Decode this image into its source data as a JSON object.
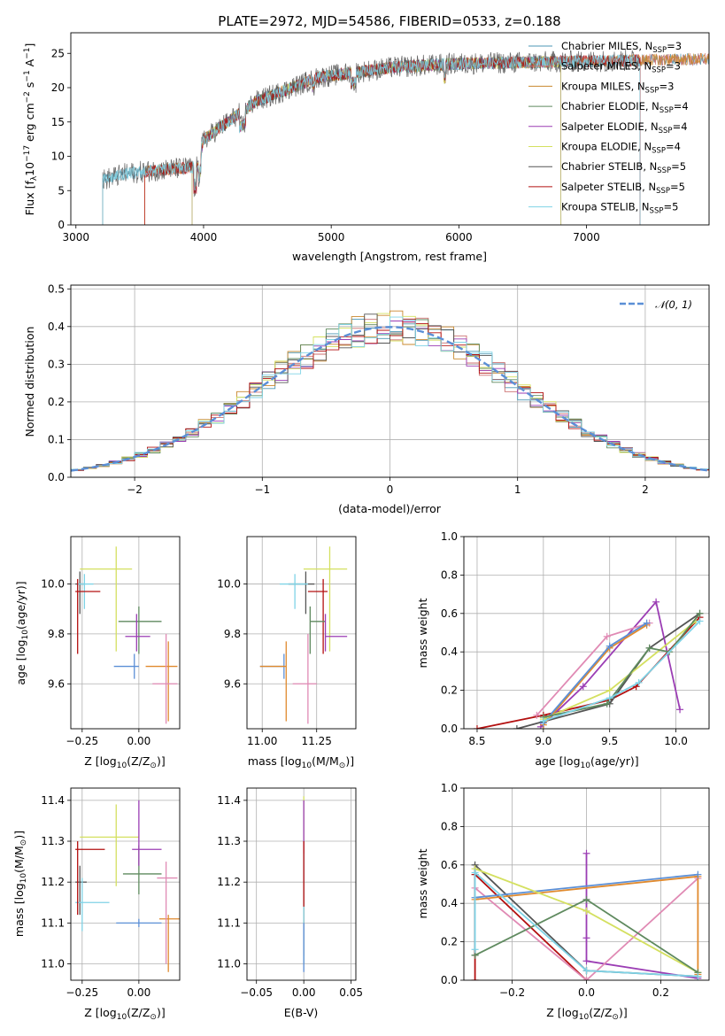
{
  "colors": [
    "#4d97b4",
    "#cc6f6f",
    "#c9882e",
    "#5f8a5f",
    "#9b3db4",
    "#d4e060",
    "#555555",
    "#b31010",
    "#7fd3e6"
  ],
  "chart_data": [
    {
      "type": "line",
      "id": "spectrum",
      "title": "PLATE=2972, MJD=54586, FIBERID=0533, z=0.188",
      "xlabel": "wavelength [Angstrom, rest frame]",
      "ylabel": "Flux [f",
      "ylabel_sub": "λ",
      "ylabel_rest": "10",
      "ylabel_sup1": "−17",
      "ylabel_rest2": " erg cm",
      "ylabel_sup2": "−2",
      "ylabel_rest3": " s",
      "ylabel_sup3": "−1",
      "ylabel_rest4": " A",
      "ylabel_sup4": "−1",
      "ylabel_end": "]",
      "xlim": [
        2960,
        7960
      ],
      "ylim": [
        0,
        28
      ],
      "xticks": [
        3000,
        4000,
        5000,
        6000,
        7000
      ],
      "yticks": [
        0,
        5,
        10,
        15,
        20,
        25
      ],
      "legend_loc": "top-right",
      "series": [
        {
          "name": "Chabrier MILES, N",
          "sub": "SSP",
          "suffix": "=3",
          "x_start": 3210,
          "x_end": 7960
        },
        {
          "name": "Salpeter MILES, N",
          "sub": "SSP",
          "suffix": "=3",
          "x_start": 3540,
          "x_end": 7960
        },
        {
          "name": "Kroupa MILES, N",
          "sub": "SSP",
          "suffix": "=3",
          "x_start": 3540,
          "x_end": 7960
        },
        {
          "name": "Chabrier ELODIE, N",
          "sub": "SSP",
          "suffix": "=4",
          "x_start": 3910,
          "x_end": 6800
        },
        {
          "name": "Salpeter ELODIE, N",
          "sub": "SSP",
          "suffix": "=4",
          "x_start": 3910,
          "x_end": 6800
        },
        {
          "name": "Kroupa ELODIE, N",
          "sub": "SSP",
          "suffix": "=4",
          "x_start": 3910,
          "x_end": 6800
        },
        {
          "name": "Chabrier STELIB, N",
          "sub": "SSP",
          "suffix": "=5",
          "x_start": 3210,
          "x_end": 7420
        },
        {
          "name": "Salpeter STELIB, N",
          "sub": "SSP",
          "suffix": "=5",
          "x_start": 3540,
          "x_end": 7420
        },
        {
          "name": "Kroupa STELIB, N",
          "sub": "SSP",
          "suffix": "=5",
          "x_start": 3210,
          "x_end": 7420
        }
      ]
    },
    {
      "type": "line",
      "id": "residuals",
      "xlabel": "(data-model)/error",
      "ylabel": "Normed distribution",
      "xlim": [
        -2.5,
        2.5
      ],
      "ylim": [
        0,
        0.51
      ],
      "xticks": [
        -2,
        -1,
        0,
        1,
        2
      ],
      "yticks": [
        0.0,
        0.1,
        0.2,
        0.3,
        0.4,
        0.5
      ],
      "grid": true,
      "legend_loc": "top-right",
      "legend": {
        "name": "𝒩(0, 1)",
        "color": "#5b8fd6"
      }
    },
    {
      "type": "scatter",
      "id": "age-vs-Z",
      "xlabel": "Z [log",
      "xlabel_sub": "10",
      "xlabel_rest": "(Z/Z",
      "xlabel_sub2": "⊙",
      "xlabel_end": ")]",
      "ylabel": "age  [log",
      "ylabel_sub": "10",
      "ylabel_rest": "(age/yr)]",
      "xlim": [
        -0.3,
        0.18
      ],
      "ylim": [
        9.42,
        10.19
      ],
      "xticks": [
        -0.25,
        0.0
      ],
      "yticks": [
        9.6,
        9.8,
        10.0
      ],
      "grid": true,
      "points": [
        {
          "x": -0.26,
          "xerr": [
            0.02,
            0.02
          ],
          "y": 10.0,
          "yerr": [
            0.12,
            0.05
          ],
          "c": "#555555"
        },
        {
          "x": -0.24,
          "xerr": [
            0.03,
            0.04
          ],
          "y": 10.0,
          "yerr": [
            0.1,
            0.04
          ],
          "c": "#7fd3e6"
        },
        {
          "x": -0.27,
          "xerr": [
            0.01,
            0.1
          ],
          "y": 9.97,
          "yerr": [
            0.25,
            0.05
          ],
          "c": "#b31010"
        },
        {
          "x": -0.1,
          "xerr": [
            0.16,
            0.07
          ],
          "y": 10.06,
          "yerr": [
            0.33,
            0.09
          ],
          "c": "#d4e060"
        },
        {
          "x": 0.0,
          "xerr": [
            0.09,
            0.1
          ],
          "y": 9.85,
          "yerr": [
            0.13,
            0.06
          ],
          "c": "#5f8a5f"
        },
        {
          "x": -0.01,
          "xerr": [
            0.05,
            0.06
          ],
          "y": 9.79,
          "yerr": [
            0.06,
            0.09
          ],
          "c": "#9b3db4"
        },
        {
          "x": -0.02,
          "xerr": [
            0.09,
            0.02
          ],
          "y": 9.67,
          "yerr": [
            0.05,
            0.05
          ],
          "c": "#5b8fd6"
        },
        {
          "x": 0.13,
          "xerr": [
            0.1,
            0.04
          ],
          "y": 9.67,
          "yerr": [
            0.22,
            0.1
          ],
          "c": "#e08a2e"
        },
        {
          "x": 0.12,
          "xerr": [
            0.06,
            0.05
          ],
          "y": 9.6,
          "yerr": [
            0.16,
            0.2
          ],
          "c": "#e08ab4"
        }
      ]
    },
    {
      "type": "scatter",
      "id": "age-vs-mass",
      "xlabel": "mass [log",
      "xlabel_sub": "10",
      "xlabel_rest": "(M/M",
      "xlabel_sub2": "⊙",
      "xlabel_end": ")]",
      "xlim": [
        10.93,
        11.43
      ],
      "ylim": [
        9.42,
        10.19
      ],
      "xticks": [
        11.0,
        11.25
      ],
      "yticks": [
        9.6,
        9.8,
        10.0
      ],
      "grid": true,
      "points": [
        {
          "x": 11.2,
          "xerr": [
            0.08,
            0.04
          ],
          "y": 10.0,
          "yerr": [
            0.12,
            0.05
          ],
          "c": "#555555"
        },
        {
          "x": 11.15,
          "xerr": [
            0.07,
            0.06
          ],
          "y": 10.0,
          "yerr": [
            0.1,
            0.04
          ],
          "c": "#7fd3e6"
        },
        {
          "x": 11.28,
          "xerr": [
            0.07,
            0.02
          ],
          "y": 9.97,
          "yerr": [
            0.25,
            0.05
          ],
          "c": "#b31010"
        },
        {
          "x": 11.31,
          "xerr": [
            0.12,
            0.08
          ],
          "y": 10.06,
          "yerr": [
            0.33,
            0.09
          ],
          "c": "#d4e060"
        },
        {
          "x": 11.22,
          "xerr": [
            0.0,
            0.07
          ],
          "y": 9.85,
          "yerr": [
            0.13,
            0.06
          ],
          "c": "#5f8a5f"
        },
        {
          "x": 11.29,
          "xerr": [
            0.0,
            0.1
          ],
          "y": 9.79,
          "yerr": [
            0.06,
            0.09
          ],
          "c": "#9b3db4"
        },
        {
          "x": 11.1,
          "xerr": [
            0.11,
            0.0
          ],
          "y": 9.67,
          "yerr": [
            0.05,
            0.05
          ],
          "c": "#5b8fd6"
        },
        {
          "x": 11.11,
          "xerr": [
            0.12,
            0.0
          ],
          "y": 9.67,
          "yerr": [
            0.22,
            0.1
          ],
          "c": "#e08a2e"
        },
        {
          "x": 11.21,
          "xerr": [
            0.07,
            0.04
          ],
          "y": 9.6,
          "yerr": [
            0.16,
            0.2
          ],
          "c": "#e08ab4"
        }
      ]
    },
    {
      "type": "line",
      "id": "weight-vs-age",
      "xlabel": "age  [log",
      "xlabel_sub": "10",
      "xlabel_rest": "(age/yr)]",
      "ylabel": "mass weight",
      "xlim": [
        8.4,
        10.25
      ],
      "ylim": [
        0,
        1.0
      ],
      "xticks": [
        8.5,
        9.0,
        9.5,
        10.0
      ],
      "yticks": [
        0.0,
        0.2,
        0.4,
        0.6,
        0.8,
        1.0
      ],
      "grid": true,
      "series": [
        {
          "c": "#b31010",
          "x": [
            8.5,
            9.0,
            9.5,
            9.7,
            10.18
          ],
          "y": [
            0.0,
            0.07,
            0.15,
            0.22,
            0.58
          ]
        },
        {
          "c": "#555555",
          "x": [
            8.8,
            9.5,
            9.8,
            10.18
          ],
          "y": [
            0.0,
            0.13,
            0.42,
            0.6
          ]
        },
        {
          "c": "#9b3db4",
          "x": [
            8.98,
            9.3,
            9.85,
            10.03
          ],
          "y": [
            0.01,
            0.22,
            0.66,
            0.1
          ]
        },
        {
          "c": "#e08ab4",
          "x": [
            8.95,
            9.48,
            9.8
          ],
          "y": [
            0.07,
            0.48,
            0.55
          ]
        },
        {
          "c": "#e08a2e",
          "x": [
            9.0,
            9.5,
            9.78
          ],
          "y": [
            0.02,
            0.42,
            0.54
          ]
        },
        {
          "c": "#5b8fd6",
          "x": [
            9.0,
            9.5,
            9.78
          ],
          "y": [
            0.03,
            0.43,
            0.55
          ]
        },
        {
          "c": "#d4e060",
          "x": [
            9.0,
            9.5,
            10.15
          ],
          "y": [
            0.05,
            0.2,
            0.56
          ]
        },
        {
          "c": "#5f8a5f",
          "x": [
            9.0,
            9.48,
            9.8,
            9.95,
            10.18
          ],
          "y": [
            0.06,
            0.13,
            0.42,
            0.4,
            0.6
          ]
        },
        {
          "c": "#7fd3e6",
          "x": [
            9.0,
            9.5,
            9.72,
            10.18
          ],
          "y": [
            0.04,
            0.16,
            0.24,
            0.56
          ]
        }
      ]
    },
    {
      "type": "scatter",
      "id": "mass-vs-Z",
      "xlabel": "Z [log",
      "xlabel_sub": "10",
      "xlabel_rest": "(Z/Z",
      "xlabel_sub2": "⊙",
      "xlabel_end": ")]",
      "ylabel": "mass [log",
      "ylabel_sub": "10",
      "ylabel_rest": "(M/M",
      "ylabel_sub2": "⊙",
      "ylabel_end": ")]",
      "xlim": [
        -0.3,
        0.18
      ],
      "ylim": [
        10.96,
        11.43
      ],
      "xticks": [
        -0.25,
        0.0
      ],
      "yticks": [
        11.0,
        11.1,
        11.2,
        11.3,
        11.4
      ],
      "grid": true,
      "points": [
        {
          "x": -0.26,
          "xerr": [
            0.02,
            0.03
          ],
          "y": 11.2,
          "yerr": [
            0.08,
            0.04
          ],
          "c": "#555555"
        },
        {
          "x": -0.25,
          "xerr": [
            0.03,
            0.12
          ],
          "y": 11.15,
          "yerr": [
            0.07,
            0.06
          ],
          "c": "#7fd3e6"
        },
        {
          "x": -0.27,
          "xerr": [
            0.01,
            0.12
          ],
          "y": 11.28,
          "yerr": [
            0.16,
            0.02
          ],
          "c": "#b31010"
        },
        {
          "x": -0.1,
          "xerr": [
            0.16,
            0.1
          ],
          "y": 11.31,
          "yerr": [
            0.12,
            0.08
          ],
          "c": "#d4e060"
        },
        {
          "x": 0.0,
          "xerr": [
            0.07,
            0.1
          ],
          "y": 11.22,
          "yerr": [
            0.05,
            0.07
          ],
          "c": "#5f8a5f"
        },
        {
          "x": 0.0,
          "xerr": [
            0.03,
            0.1
          ],
          "y": 11.28,
          "yerr": [
            0.04,
            0.12
          ],
          "c": "#9b3db4"
        },
        {
          "x": 0.0,
          "xerr": [
            0.1,
            0.1
          ],
          "y": 11.1,
          "yerr": [
            0.01,
            0.01
          ],
          "c": "#5b8fd6"
        },
        {
          "x": 0.13,
          "xerr": [
            0.04,
            0.05
          ],
          "y": 11.11,
          "yerr": [
            0.13,
            0.01
          ],
          "c": "#e08a2e"
        },
        {
          "x": 0.12,
          "xerr": [
            0.04,
            0.05
          ],
          "y": 11.21,
          "yerr": [
            0.21,
            0.04
          ],
          "c": "#e08ab4"
        }
      ]
    },
    {
      "type": "scatter",
      "id": "mass-vs-EBV",
      "xlabel": "E(B-V)",
      "xlim": [
        -0.06,
        0.055
      ],
      "ylim": [
        10.96,
        11.43
      ],
      "xticks": [
        -0.05,
        0.0,
        0.05
      ],
      "yticks": [
        11.0,
        11.1,
        11.2,
        11.3,
        11.4
      ],
      "grid": true,
      "points": [
        {
          "x": 0.0,
          "xerr": [
            0,
            0
          ],
          "y": 11.2,
          "yerr": [
            0.2,
            0.21
          ],
          "c": "#d4e060"
        },
        {
          "x": 0.0,
          "xerr": [
            0,
            0
          ],
          "y": 11.2,
          "yerr": [
            0.14,
            0.2
          ],
          "c": "#9b3db4"
        },
        {
          "x": 0.0,
          "xerr": [
            0,
            0
          ],
          "y": 11.2,
          "yerr": [
            0.18,
            0.0
          ],
          "c": "#e08a2e"
        },
        {
          "x": 0.0,
          "xerr": [
            0,
            0
          ],
          "y": 11.15,
          "yerr": [
            0.15,
            0.12
          ],
          "c": "#7fd3e6"
        },
        {
          "x": 0.0,
          "xerr": [
            0,
            0
          ],
          "y": 11.28,
          "yerr": [
            0.14,
            0.02
          ],
          "c": "#b31010"
        },
        {
          "x": 0.0,
          "xerr": [
            0,
            0
          ],
          "y": 11.1,
          "yerr": [
            0.12,
            0.0
          ],
          "c": "#5b8fd6"
        }
      ]
    },
    {
      "type": "line",
      "id": "weight-vs-Z",
      "xlabel": "Z [log",
      "xlabel_sub": "10",
      "xlabel_rest": "(Z/Z",
      "xlabel_sub2": "⊙",
      "xlabel_end": ")]",
      "ylabel": "mass weight",
      "xlim": [
        -0.33,
        0.33
      ],
      "ylim": [
        0,
        1.0
      ],
      "xticks": [
        -0.2,
        0.0,
        0.2
      ],
      "yticks": [
        0.0,
        0.2,
        0.4,
        0.6,
        0.8,
        1.0
      ],
      "grid": true,
      "series": [
        {
          "c": "#b31010",
          "x": [
            -0.3,
            -0.3,
            0.0
          ],
          "y": [
            0.0,
            0.55,
            0.0
          ]
        },
        {
          "c": "#555555",
          "x": [
            -0.3,
            -0.3,
            0.0,
            0.0,
            0.3
          ],
          "y": [
            0.13,
            0.6,
            0.05,
            0.05,
            0.02
          ]
        },
        {
          "c": "#9b3db4",
          "x": [
            0.0,
            0.0,
            0.0,
            0.3
          ],
          "y": [
            0.66,
            0.22,
            0.1,
            0.01
          ]
        },
        {
          "c": "#e08ab4",
          "x": [
            -0.3,
            0.0,
            0.3
          ],
          "y": [
            0.48,
            0.0,
            0.53
          ]
        },
        {
          "c": "#e08a2e",
          "x": [
            -0.3,
            0.3,
            0.3
          ],
          "y": [
            0.42,
            0.54,
            0.03
          ]
        },
        {
          "c": "#5b8fd6",
          "x": [
            -0.3,
            0.3
          ],
          "y": [
            0.43,
            0.55
          ]
        },
        {
          "c": "#d4e060",
          "x": [
            -0.3,
            0.0,
            0.3
          ],
          "y": [
            0.58,
            0.36,
            0.04
          ]
        },
        {
          "c": "#5f8a5f",
          "x": [
            -0.3,
            0.0,
            0.3
          ],
          "y": [
            0.13,
            0.42,
            0.04
          ]
        },
        {
          "c": "#7fd3e6",
          "x": [
            -0.3,
            -0.3,
            0.0,
            0.3
          ],
          "y": [
            0.16,
            0.56,
            0.05,
            0.02
          ]
        }
      ]
    }
  ]
}
